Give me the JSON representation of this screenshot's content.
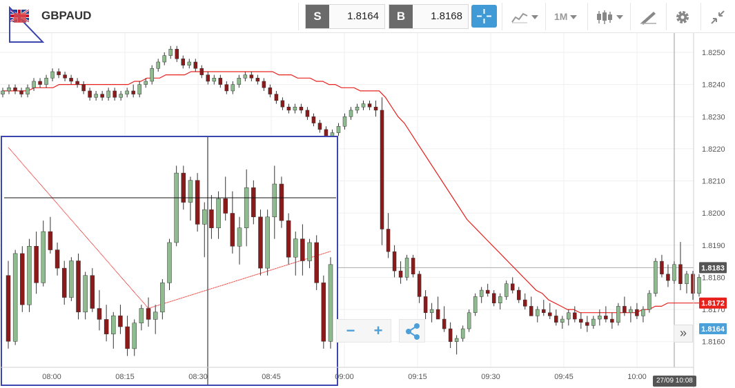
{
  "instrument": {
    "symbol": "GBPAUD",
    "flag_icon": "uk-au-flag-icon"
  },
  "quote": {
    "sell_tag": "S",
    "sell_price": "1.8164",
    "buy_tag": "B",
    "buy_price": "1.8168"
  },
  "toolbar": {
    "crosshair_icon": "crosshair-icon",
    "chart_type_icon": "area-chart-icon",
    "timeframe": "1M",
    "candle_icon": "candlestick-icon",
    "draw_icon": "pencil-ruler-icon",
    "settings_icon": "gear-icon",
    "collapse_icon": "collapse-icon"
  },
  "chart_data": {
    "type": "candlestick",
    "symbol": "GBPAUD",
    "timeframe": "1M",
    "y_range": [
      1.8152,
      1.8256
    ],
    "y_ticks": [
      "1.8250",
      "1.8240",
      "1.8230",
      "1.8220",
      "1.8210",
      "1.8200",
      "1.8190",
      "1.8180",
      "1.8170",
      "1.8160"
    ],
    "x_ticks": [
      "08:00",
      "08:15",
      "08:30",
      "08:45",
      "09:00",
      "09:15",
      "09:30",
      "09:45",
      "10:00"
    ],
    "current_price_tags": [
      {
        "label": "1.8183",
        "value": 1.8183,
        "color": "#555555"
      },
      {
        "label": "1.8172",
        "value": 1.8172,
        "color": "#e8201c"
      },
      {
        "label": "1.8164",
        "value": 1.8164,
        "color": "#4aa0d8"
      }
    ],
    "bull_color": "#8fbc8f",
    "bear_color": "#8b1a1a",
    "ma_color": "#e8201c",
    "crosshair_time": "27/09 10:08",
    "candles": [
      [
        1.8237,
        1.8239,
        1.8236,
        1.8238
      ],
      [
        1.8238,
        1.824,
        1.8237,
        1.8239
      ],
      [
        1.8239,
        1.824,
        1.8237,
        1.8238
      ],
      [
        1.8238,
        1.8239,
        1.8236,
        1.8237
      ],
      [
        1.8237,
        1.824,
        1.8236,
        1.8239
      ],
      [
        1.8239,
        1.8242,
        1.8238,
        1.8241
      ],
      [
        1.8241,
        1.8242,
        1.8239,
        1.824
      ],
      [
        1.824,
        1.8243,
        1.8239,
        1.8242
      ],
      [
        1.8242,
        1.8245,
        1.8241,
        1.8244
      ],
      [
        1.8244,
        1.8245,
        1.8242,
        1.8243
      ],
      [
        1.8243,
        1.8244,
        1.8241,
        1.8242
      ],
      [
        1.8242,
        1.8243,
        1.824,
        1.8241
      ],
      [
        1.8241,
        1.8242,
        1.8239,
        1.824
      ],
      [
        1.824,
        1.8241,
        1.8237,
        1.8238
      ],
      [
        1.8238,
        1.8239,
        1.8235,
        1.8236
      ],
      [
        1.8236,
        1.8238,
        1.8235,
        1.8237
      ],
      [
        1.8237,
        1.8238,
        1.8235,
        1.8236
      ],
      [
        1.8236,
        1.8239,
        1.8235,
        1.8238
      ],
      [
        1.8238,
        1.8239,
        1.8235,
        1.8236
      ],
      [
        1.8236,
        1.8238,
        1.8235,
        1.8237
      ],
      [
        1.8237,
        1.8239,
        1.8236,
        1.8238
      ],
      [
        1.8238,
        1.824,
        1.8236,
        1.8237
      ],
      [
        1.8237,
        1.8241,
        1.8236,
        1.824
      ],
      [
        1.824,
        1.8242,
        1.8239,
        1.8241
      ],
      [
        1.8241,
        1.8246,
        1.824,
        1.8245
      ],
      [
        1.8245,
        1.8248,
        1.8244,
        1.8247
      ],
      [
        1.8247,
        1.825,
        1.8246,
        1.8249
      ],
      [
        1.8249,
        1.8252,
        1.8248,
        1.8251
      ],
      [
        1.8251,
        1.8252,
        1.8247,
        1.8248
      ],
      [
        1.8248,
        1.8249,
        1.8245,
        1.8246
      ],
      [
        1.8246,
        1.8248,
        1.8245,
        1.8247
      ],
      [
        1.8247,
        1.8248,
        1.8244,
        1.8245
      ],
      [
        1.8245,
        1.8246,
        1.8242,
        1.8243
      ],
      [
        1.8243,
        1.8244,
        1.824,
        1.8241
      ],
      [
        1.8241,
        1.8243,
        1.824,
        1.8242
      ],
      [
        1.8242,
        1.8243,
        1.8239,
        1.824
      ],
      [
        1.824,
        1.8241,
        1.8237,
        1.8238
      ],
      [
        1.8238,
        1.8241,
        1.8237,
        1.824
      ],
      [
        1.824,
        1.8243,
        1.8239,
        1.8242
      ],
      [
        1.8242,
        1.8244,
        1.8241,
        1.8243
      ],
      [
        1.8243,
        1.8244,
        1.8241,
        1.8242
      ],
      [
        1.8242,
        1.8243,
        1.824,
        1.8241
      ],
      [
        1.8241,
        1.8242,
        1.8238,
        1.8239
      ],
      [
        1.8239,
        1.824,
        1.8236,
        1.8237
      ],
      [
        1.8237,
        1.8238,
        1.8234,
        1.8235
      ],
      [
        1.8235,
        1.8236,
        1.8232,
        1.8233
      ],
      [
        1.8233,
        1.8234,
        1.8231,
        1.8232
      ],
      [
        1.8232,
        1.8234,
        1.8231,
        1.8233
      ],
      [
        1.8233,
        1.8234,
        1.8231,
        1.8232
      ],
      [
        1.8232,
        1.8233,
        1.8229,
        1.823
      ],
      [
        1.823,
        1.8231,
        1.8227,
        1.8228
      ],
      [
        1.8228,
        1.8229,
        1.8225,
        1.8226
      ],
      [
        1.8226,
        1.8227,
        1.8223,
        1.8224
      ],
      [
        1.8224,
        1.8226,
        1.8223,
        1.8225
      ],
      [
        1.8225,
        1.8228,
        1.8224,
        1.8227
      ],
      [
        1.8227,
        1.8231,
        1.8226,
        1.823
      ],
      [
        1.823,
        1.8233,
        1.8229,
        1.8232
      ],
      [
        1.8232,
        1.8234,
        1.8231,
        1.8233
      ],
      [
        1.8233,
        1.8235,
        1.8232,
        1.8234
      ],
      [
        1.8234,
        1.8235,
        1.8232,
        1.8233
      ],
      [
        1.8233,
        1.8235,
        1.823,
        1.8232
      ],
      [
        1.8232,
        1.8236,
        1.819,
        1.8195
      ],
      [
        1.8195,
        1.82,
        1.8186,
        1.8188
      ],
      [
        1.8188,
        1.819,
        1.818,
        1.8182
      ],
      [
        1.8182,
        1.8185,
        1.8178,
        1.818
      ],
      [
        1.818,
        1.8187,
        1.8179,
        1.8186
      ],
      [
        1.8186,
        1.8187,
        1.818,
        1.8181
      ],
      [
        1.8181,
        1.8182,
        1.8172,
        1.8174
      ],
      [
        1.8174,
        1.8176,
        1.8167,
        1.8169
      ],
      [
        1.8169,
        1.8172,
        1.8166,
        1.817
      ],
      [
        1.817,
        1.8174,
        1.8168,
        1.8167
      ],
      [
        1.8167,
        1.8171,
        1.8163,
        1.8164
      ],
      [
        1.8164,
        1.8166,
        1.8158,
        1.816
      ],
      [
        1.816,
        1.8162,
        1.8156,
        1.8161
      ],
      [
        1.8161,
        1.8165,
        1.816,
        1.8164
      ],
      [
        1.8164,
        1.817,
        1.8163,
        1.8169
      ],
      [
        1.8169,
        1.8175,
        1.8168,
        1.8174
      ],
      [
        1.8174,
        1.8177,
        1.8172,
        1.8176
      ],
      [
        1.8176,
        1.8178,
        1.8174,
        1.8175
      ],
      [
        1.8175,
        1.8176,
        1.8171,
        1.8172
      ],
      [
        1.8172,
        1.8175,
        1.817,
        1.8174
      ],
      [
        1.8174,
        1.8179,
        1.8173,
        1.8178
      ],
      [
        1.8178,
        1.818,
        1.8175,
        1.8176
      ],
      [
        1.8176,
        1.8177,
        1.8172,
        1.8173
      ],
      [
        1.8173,
        1.8175,
        1.817,
        1.8171
      ],
      [
        1.8171,
        1.8174,
        1.8169,
        1.8168
      ],
      [
        1.8168,
        1.8171,
        1.8166,
        1.817
      ],
      [
        1.817,
        1.8173,
        1.8168,
        1.8169
      ],
      [
        1.8169,
        1.8172,
        1.8167,
        1.8168
      ],
      [
        1.8168,
        1.817,
        1.8165,
        1.8166
      ],
      [
        1.8166,
        1.8168,
        1.8164,
        1.8167
      ],
      [
        1.8167,
        1.817,
        1.8165,
        1.8169
      ],
      [
        1.8169,
        1.8171,
        1.8166,
        1.8167
      ],
      [
        1.8167,
        1.8169,
        1.8164,
        1.8166
      ],
      [
        1.8166,
        1.8168,
        1.8163,
        1.8165
      ],
      [
        1.8165,
        1.8168,
        1.8164,
        1.8167
      ],
      [
        1.8167,
        1.817,
        1.8165,
        1.8168
      ],
      [
        1.8168,
        1.8171,
        1.8166,
        1.8167
      ],
      [
        1.8167,
        1.8169,
        1.8164,
        1.8166
      ],
      [
        1.8166,
        1.8172,
        1.8165,
        1.8171
      ],
      [
        1.8171,
        1.8174,
        1.8168,
        1.8169
      ],
      [
        1.8169,
        1.8171,
        1.8166,
        1.817
      ],
      [
        1.817,
        1.8172,
        1.8167,
        1.8168
      ],
      [
        1.8168,
        1.8171,
        1.8166,
        1.817
      ],
      [
        1.817,
        1.8176,
        1.8169,
        1.8175
      ],
      [
        1.8175,
        1.8186,
        1.8174,
        1.8185
      ],
      [
        1.8185,
        1.8187,
        1.818,
        1.8181
      ],
      [
        1.8181,
        1.8184,
        1.8177,
        1.8179
      ],
      [
        1.8179,
        1.8185,
        1.8178,
        1.8184
      ],
      [
        1.8184,
        1.8191,
        1.8176,
        1.8178
      ],
      [
        1.8178,
        1.8182,
        1.8175,
        1.8181
      ],
      [
        1.8181,
        1.8182,
        1.8173,
        1.8175
      ],
      [
        1.8175,
        1.8181,
        1.8174,
        1.818
      ]
    ],
    "ma": [
      1.8238,
      1.8238,
      1.8238,
      1.8238,
      1.8238,
      1.8239,
      1.8239,
      1.8239,
      1.8239,
      1.824,
      1.824,
      1.824,
      1.824,
      1.824,
      1.824,
      1.824,
      1.824,
      1.824,
      1.824,
      1.824,
      1.824,
      1.8241,
      1.8241,
      1.8242,
      1.8242,
      1.8242,
      1.8243,
      1.8243,
      1.8243,
      1.8243,
      1.8244,
      1.8244,
      1.8244,
      1.8244,
      1.8244,
      1.8244,
      1.8244,
      1.8244,
      1.8244,
      1.8244,
      1.8244,
      1.8244,
      1.8244,
      1.8244,
      1.8243,
      1.8243,
      1.8243,
      1.8242,
      1.8242,
      1.8242,
      1.8241,
      1.8241,
      1.824,
      1.824,
      1.8239,
      1.8239,
      1.8239,
      1.8238,
      1.8238,
      1.8238,
      1.8238,
      1.8236,
      1.8233,
      1.823,
      1.8228,
      1.8225,
      1.8222,
      1.8219,
      1.8216,
      1.8213,
      1.821,
      1.8207,
      1.8204,
      1.8201,
      1.8198,
      1.8196,
      1.8194,
      1.8192,
      1.819,
      1.8188,
      1.8186,
      1.8184,
      1.8182,
      1.818,
      1.8178,
      1.8176,
      1.8175,
      1.8173,
      1.8172,
      1.8171,
      1.817,
      1.817,
      1.8169,
      1.8169,
      1.8169,
      1.8169,
      1.8169,
      1.8169,
      1.8169,
      1.8169,
      1.8169,
      1.8169,
      1.817,
      1.817,
      1.8171,
      1.8171,
      1.8172,
      1.8172,
      1.8172,
      1.8172,
      1.8172,
      1.8172
    ],
    "zoom_in_box_candles": [
      [
        1.818,
        1.8184,
        1.816,
        1.8162
      ],
      [
        1.8162,
        1.8187,
        1.8161,
        1.8186
      ],
      [
        1.8186,
        1.8188,
        1.817,
        1.8172
      ],
      [
        1.8172,
        1.819,
        1.817,
        1.8188
      ],
      [
        1.8188,
        1.8192,
        1.8175,
        1.8178
      ],
      [
        1.8178,
        1.8195,
        1.8177,
        1.8192
      ],
      [
        1.8192,
        1.8196,
        1.8186,
        1.8187
      ],
      [
        1.8187,
        1.8189,
        1.818,
        1.8182
      ],
      [
        1.8182,
        1.8184,
        1.8172,
        1.8174
      ],
      [
        1.8174,
        1.8185,
        1.8173,
        1.8184
      ],
      [
        1.8184,
        1.8186,
        1.8168,
        1.817
      ],
      [
        1.817,
        1.8181,
        1.8168,
        1.818
      ],
      [
        1.818,
        1.8182,
        1.817,
        1.8171
      ],
      [
        1.8171,
        1.8176,
        1.8165,
        1.8168
      ],
      [
        1.8168,
        1.8172,
        1.8162,
        1.8164
      ],
      [
        1.8164,
        1.817,
        1.816,
        1.8169
      ],
      [
        1.8169,
        1.8172,
        1.8164,
        1.8166
      ],
      [
        1.8166,
        1.8169,
        1.8158,
        1.816
      ],
      [
        1.816,
        1.8168,
        1.8158,
        1.8167
      ],
      [
        1.8167,
        1.8172,
        1.8165,
        1.8171
      ],
      [
        1.8171,
        1.8174,
        1.8166,
        1.8168
      ],
      [
        1.8168,
        1.8172,
        1.8164,
        1.817
      ],
      [
        1.817,
        1.8179,
        1.8168,
        1.8178
      ],
      [
        1.8178,
        1.819,
        1.8176,
        1.8189
      ],
      [
        1.8189,
        1.821,
        1.8188,
        1.8208
      ],
      [
        1.8208,
        1.821,
        1.8198,
        1.82
      ],
      [
        1.82,
        1.8207,
        1.8195,
        1.8206
      ],
      [
        1.8206,
        1.8208,
        1.8192,
        1.8194
      ],
      [
        1.8194,
        1.82,
        1.8185,
        1.8198
      ],
      [
        1.8198,
        1.8202,
        1.819,
        1.8193
      ],
      [
        1.8193,
        1.8203,
        1.819,
        1.8201
      ],
      [
        1.8201,
        1.8207,
        1.8195,
        1.8197
      ],
      [
        1.8197,
        1.8203,
        1.8186,
        1.8188
      ],
      [
        1.8188,
        1.8196,
        1.8183,
        1.8193
      ],
      [
        1.8193,
        1.8209,
        1.8188,
        1.8204
      ],
      [
        1.8204,
        1.8206,
        1.8194,
        1.8196
      ],
      [
        1.8196,
        1.8198,
        1.818,
        1.8182
      ],
      [
        1.8182,
        1.8198,
        1.818,
        1.8196
      ],
      [
        1.8196,
        1.821,
        1.819,
        1.8205
      ],
      [
        1.8205,
        1.8207,
        1.8193,
        1.8195
      ],
      [
        1.8195,
        1.8197,
        1.8183,
        1.8185
      ],
      [
        1.8185,
        1.8192,
        1.818,
        1.819
      ],
      [
        1.819,
        1.8194,
        1.818,
        1.8184
      ],
      [
        1.8184,
        1.819,
        1.8182,
        1.8189
      ],
      [
        1.8189,
        1.8191,
        1.8176,
        1.8178
      ],
      [
        1.8178,
        1.818,
        1.816,
        1.8162
      ],
      [
        1.8162,
        1.8185,
        1.816,
        1.8183
      ]
    ]
  },
  "controls": {
    "zoom_out_label": "−",
    "zoom_in_label": "+",
    "share_icon": "share-icon",
    "scroll_end_label": "»",
    "datetime_label": "27/09 10:08"
  },
  "annotation": {
    "tool_icon": "triangle-ruler-icon"
  }
}
